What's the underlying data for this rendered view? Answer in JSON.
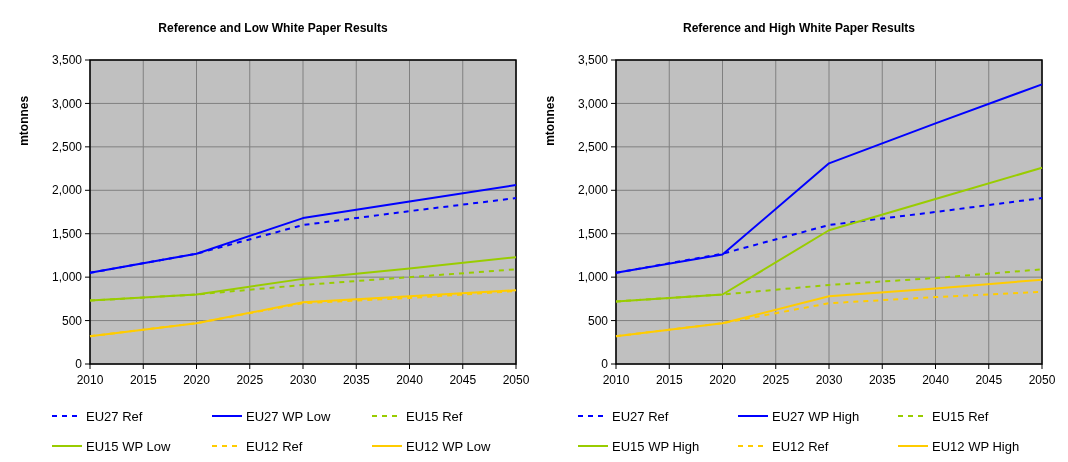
{
  "chart_data": [
    {
      "type": "line",
      "title": "Reference and Low White Paper Results",
      "ylabel": "mtonnes",
      "x": [
        2010,
        2020,
        2030,
        2040,
        2050
      ],
      "xlim": [
        2010,
        2050
      ],
      "xticks": [
        2010,
        2015,
        2020,
        2025,
        2030,
        2035,
        2040,
        2045,
        2050
      ],
      "ylim": [
        0,
        3500
      ],
      "yticks": [
        {
          "value": 0,
          "label": "0"
        },
        {
          "value": 500,
          "label": "500"
        },
        {
          "value": 1000,
          "label": "1,000"
        },
        {
          "value": 1500,
          "label": "1,500"
        },
        {
          "value": 2000,
          "label": "2,000"
        },
        {
          "value": 2500,
          "label": "2,500"
        },
        {
          "value": 3000,
          "label": "3,000"
        },
        {
          "value": 3500,
          "label": "3,500"
        }
      ],
      "grid": true,
      "legend": "bottom",
      "marker": "none",
      "series": [
        {
          "name": "EU27 Ref",
          "color": "#0000ff",
          "line_style": "dashed",
          "values": [
            1050,
            1270,
            1600,
            1760,
            1910
          ]
        },
        {
          "name": "EU27 WP Low",
          "color": "#0000ff",
          "line_style": "solid",
          "values": [
            1050,
            1270,
            1680,
            1870,
            2060
          ]
        },
        {
          "name": "EU15 Ref",
          "color": "#99cc00",
          "line_style": "dashed",
          "values": [
            730,
            800,
            910,
            1000,
            1090
          ]
        },
        {
          "name": "EU15 WP Low",
          "color": "#99cc00",
          "line_style": "solid",
          "values": [
            730,
            800,
            980,
            1100,
            1230
          ]
        },
        {
          "name": "EU12 Ref",
          "color": "#ffcc00",
          "line_style": "dashed",
          "values": [
            320,
            470,
            700,
            760,
            840
          ]
        },
        {
          "name": "EU12 WP Low",
          "color": "#ffcc00",
          "line_style": "solid",
          "values": [
            320,
            470,
            710,
            780,
            850
          ]
        }
      ]
    },
    {
      "type": "line",
      "title": "Reference and High White Paper Results",
      "ylabel": "mtonnes",
      "x": [
        2010,
        2020,
        2030,
        2040,
        2050
      ],
      "xlim": [
        2010,
        2050
      ],
      "xticks": [
        2010,
        2015,
        2020,
        2025,
        2030,
        2035,
        2040,
        2045,
        2050
      ],
      "ylim": [
        0,
        3500
      ],
      "yticks": [
        {
          "value": 0,
          "label": "0"
        },
        {
          "value": 500,
          "label": "500"
        },
        {
          "value": 1000,
          "label": "1,000"
        },
        {
          "value": 1500,
          "label": "1,500"
        },
        {
          "value": 2000,
          "label": "2,000"
        },
        {
          "value": 2500,
          "label": "2,500"
        },
        {
          "value": 3000,
          "label": "3,000"
        },
        {
          "value": 3500,
          "label": "3,500"
        }
      ],
      "grid": true,
      "legend": "bottom",
      "marker": "none",
      "series": [
        {
          "name": "EU27 Ref",
          "color": "#0000ff",
          "line_style": "dashed",
          "values": [
            1050,
            1270,
            1600,
            1750,
            1910
          ]
        },
        {
          "name": "EU27 WP High",
          "color": "#0000ff",
          "line_style": "solid",
          "values": [
            1050,
            1260,
            2310,
            2770,
            3220
          ]
        },
        {
          "name": "EU15 Ref",
          "color": "#99cc00",
          "line_style": "dashed",
          "values": [
            720,
            800,
            910,
            990,
            1090
          ]
        },
        {
          "name": "EU15 WP High",
          "color": "#99cc00",
          "line_style": "solid",
          "values": [
            720,
            800,
            1540,
            1900,
            2260
          ]
        },
        {
          "name": "EU12 Ref",
          "color": "#ffcc00",
          "line_style": "dashed",
          "values": [
            320,
            470,
            700,
            770,
            830
          ]
        },
        {
          "name": "EU12 WP High",
          "color": "#ffcc00",
          "line_style": "solid",
          "values": [
            320,
            470,
            780,
            870,
            970
          ]
        }
      ]
    }
  ]
}
